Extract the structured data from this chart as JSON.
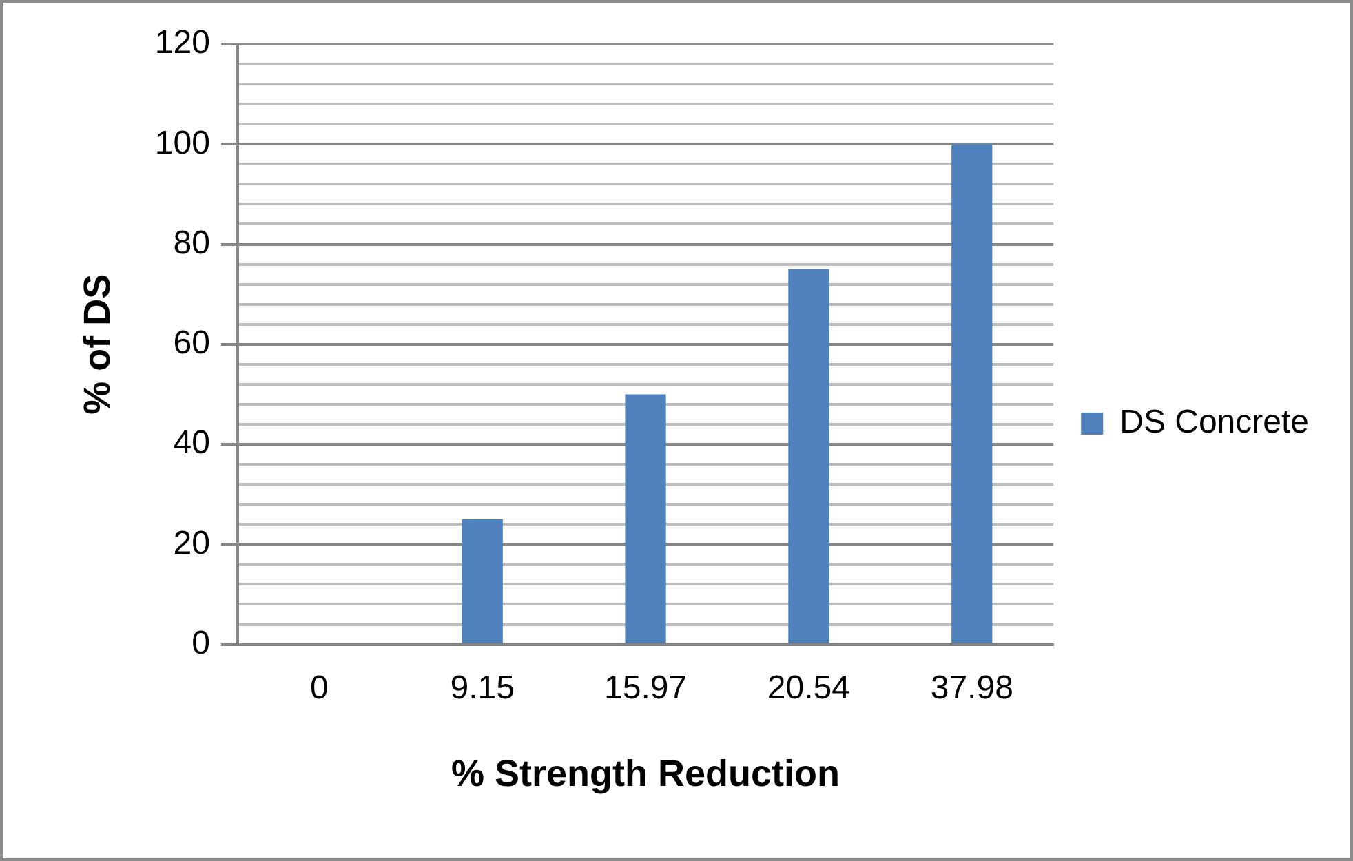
{
  "chart_data": {
    "type": "bar",
    "xlabel": "% Strength Reduction",
    "ylabel": "% of DS",
    "categories": [
      "0",
      "9.15",
      "15.97",
      "20.54",
      "37.98"
    ],
    "series": [
      {
        "name": "DS Concrete",
        "color": "#4f81bd",
        "values": [
          0,
          25,
          50,
          75,
          100
        ]
      }
    ],
    "ylim": [
      0,
      120
    ],
    "yticks": [
      0,
      {
        "value": 4,
        "label": null
      },
      {
        "value": 8,
        "label": null
      },
      {
        "value": 12,
        "label": null
      },
      {
        "value": 16,
        "label": null
      },
      20,
      {
        "value": 24,
        "label": null
      },
      {
        "value": 28,
        "label": null
      },
      {
        "value": 32,
        "label": null
      },
      {
        "value": 36,
        "label": null
      },
      40,
      {
        "value": 44,
        "label": null
      },
      {
        "value": 48,
        "label": null
      },
      {
        "value": 52,
        "label": null
      },
      {
        "value": 56,
        "label": null
      },
      60,
      {
        "value": 64,
        "label": null
      },
      {
        "value": 68,
        "label": null
      },
      {
        "value": 72,
        "label": null
      },
      {
        "value": 76,
        "label": null
      },
      80,
      {
        "value": 84,
        "label": null
      },
      {
        "value": 88,
        "label": null
      },
      {
        "value": 92,
        "label": null
      },
      {
        "value": 96,
        "label": null
      },
      100,
      {
        "value": 104,
        "label": null
      },
      {
        "value": 108,
        "label": null
      },
      {
        "value": 112,
        "label": null
      },
      {
        "value": 116,
        "label": null
      },
      120
    ],
    "grid": "y",
    "legend": "right"
  }
}
